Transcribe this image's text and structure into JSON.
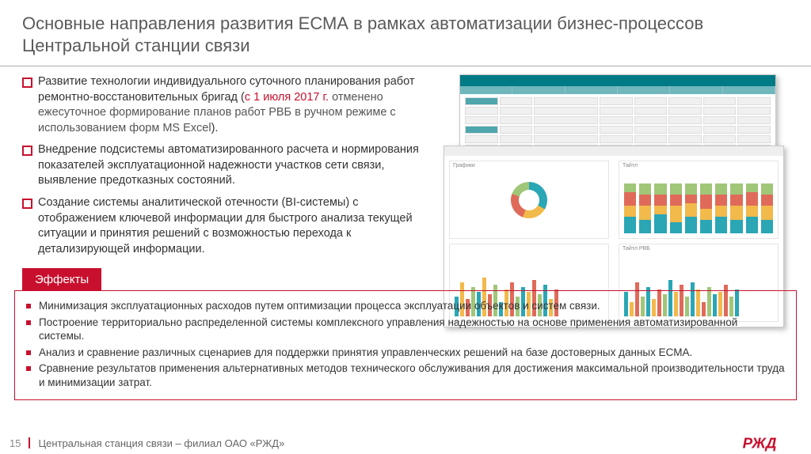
{
  "colors": {
    "brand_red": "#c8102e",
    "teal": "#007a85",
    "teal_light": "#6fb6bd",
    "chart_teal": "#2aa6b5",
    "chart_yellow": "#f2b94b",
    "chart_red": "#e06a5a",
    "chart_green": "#a0c678",
    "text_gray": "#5a5a5a",
    "background": "#ffffff"
  },
  "title": "Основные направления развития ЕСМА в рамках автоматизации бизнес-процессов Центральной станции связи",
  "bullets": [
    {
      "pre": "Развитие технологии индивидуального суточного планирования работ ремонтно-восстановительных бригад (",
      "red": "с 1 июля 2017 г.",
      "gray": " отменено ежесуточное формирование планов работ РВБ в ручном режиме с использованием форм MS Excel",
      "post": ")."
    },
    {
      "text": "Внедрение подсистемы автоматизированного расчета и нормирования показателей эксплуатационной надежности участков сети связи, выявление предотказных состояний."
    },
    {
      "text": "Создание системы аналитической отечности (BI-системы) с отображением ключевой информации для быстрого анализа текущей ситуации и принятия решений с возможностью перехода к детализирующей информации."
    }
  ],
  "effects_title": "Эффекты",
  "effects": [
    "Минимизация эксплуатационных расходов путем оптимизации процесса эксплуатации объектов и систем связи.",
    "Построение территориально распределенной системы комплексного управления надежностью на основе применения автоматизированной системы.",
    "Анализ и сравнение различных сценариев для поддержки принятия управленческих решений на базе достоверных данных ЕСМА.",
    "Сравнение результатов применения альтернативных методов технического обслуживания для достижения максимальной производительности труда и минимизации затрат."
  ],
  "footer": {
    "page": "15",
    "org": "Центральная станция связи – филиал ОАО «РЖД»"
  },
  "dashboard_mock": {
    "panel_labels": [
      "Графики",
      "Тайтл",
      "Тайтл РВБ"
    ],
    "donut": {
      "segments_deg": [
        120,
        80,
        90,
        70
      ]
    },
    "stacked_bars": [
      [
        30,
        20,
        25,
        15
      ],
      [
        25,
        25,
        20,
        20
      ],
      [
        35,
        15,
        20,
        20
      ],
      [
        20,
        30,
        20,
        20
      ],
      [
        30,
        25,
        15,
        20
      ],
      [
        25,
        20,
        25,
        20
      ],
      [
        30,
        20,
        20,
        20
      ],
      [
        25,
        25,
        20,
        20
      ],
      [
        30,
        20,
        25,
        15
      ],
      [
        25,
        25,
        20,
        20
      ]
    ],
    "grouped_bars_1": [
      40,
      70,
      35,
      60,
      50,
      80,
      45,
      65,
      30,
      55,
      70,
      40,
      60,
      50,
      75,
      45,
      65,
      35,
      55
    ],
    "grouped_bars_2": [
      50,
      30,
      70,
      40,
      60,
      35,
      55,
      45,
      75,
      50,
      65,
      40,
      70,
      55,
      30,
      60,
      45,
      50,
      65,
      40,
      55
    ]
  }
}
